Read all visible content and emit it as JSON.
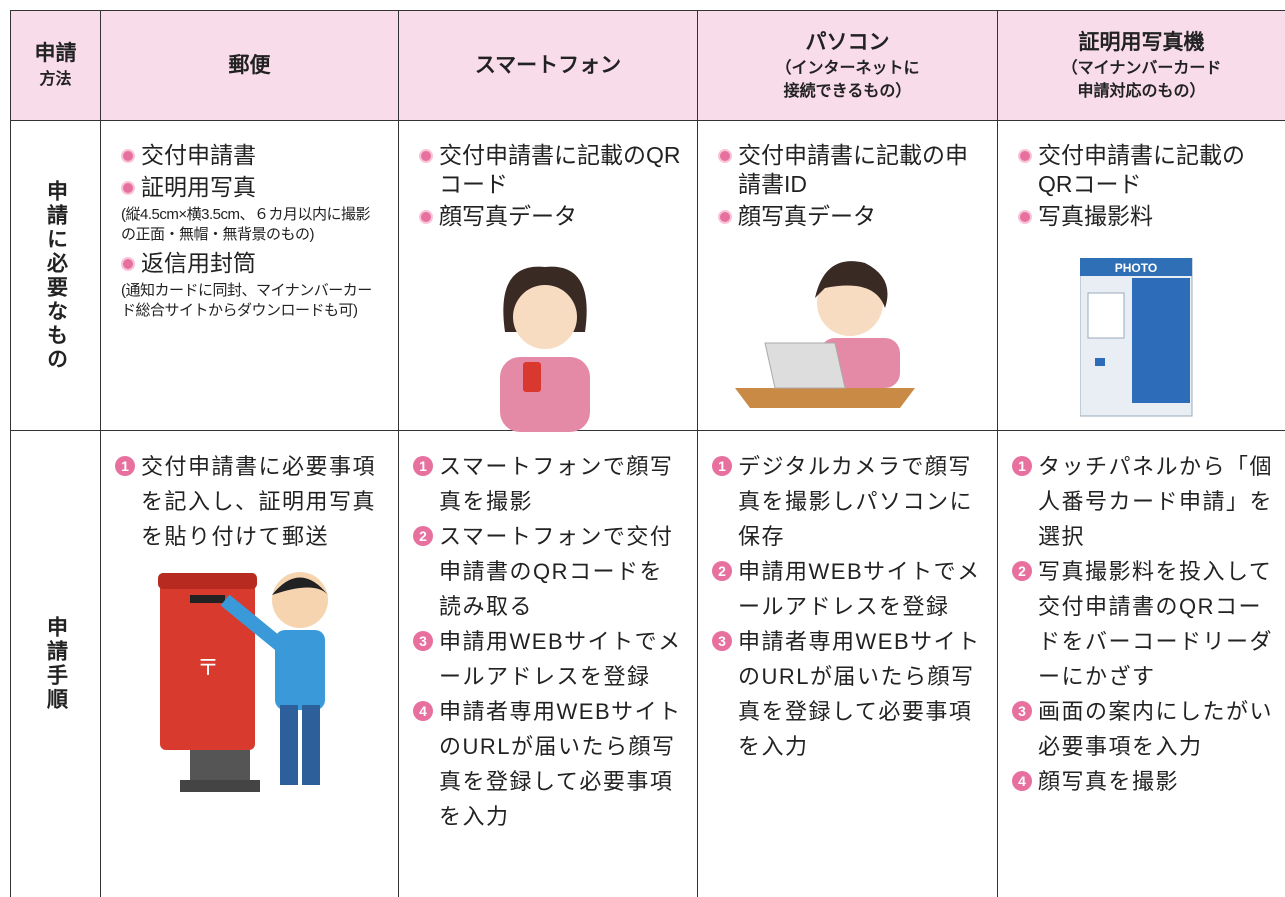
{
  "header": {
    "cells": [
      {
        "lines": [
          "申請",
          "方法"
        ]
      },
      {
        "lines": [
          "郵便"
        ]
      },
      {
        "lines": [
          "スマートフォン"
        ]
      },
      {
        "lines": [
          "パソコン",
          "（インターネットに",
          "接続できるもの）"
        ]
      },
      {
        "lines": [
          "証明用写真機",
          "（マイナンバーカード",
          "申請対応のもの）"
        ]
      }
    ]
  },
  "rows": [
    {
      "label": "申請に必要なもの",
      "cells": [
        {
          "items": [
            {
              "text": "交付申請書"
            },
            {
              "text": "証明用写真",
              "note": "(縦4.5cm×横3.5cm、６カ月以内に撮影の正面・無帽・無背景のもの)"
            },
            {
              "text": "返信用封筒",
              "note": "(通知カードに同封、マイナンバーカード総合サイトからダウンロードも可)"
            }
          ]
        },
        {
          "items": [
            {
              "text": "交付申請書に記載のQRコード"
            },
            {
              "text": "顔写真データ"
            }
          ]
        },
        {
          "items": [
            {
              "text": "交付申請書に記載の申請書ID"
            },
            {
              "text": "顔写真データ"
            }
          ]
        },
        {
          "items": [
            {
              "text": "交付申請書に記載のQRコード"
            },
            {
              "text": "写真撮影料"
            }
          ]
        }
      ]
    },
    {
      "label": "申請手順",
      "cells": [
        {
          "steps": [
            {
              "num": 1,
              "text": "交付申請書に必要事項を記入し、証明用写真を貼り付けて郵送"
            }
          ]
        },
        {
          "steps": [
            {
              "num": 1,
              "text": "スマートフォンで顔写真を撮影"
            },
            {
              "num": 2,
              "text": "スマートフォンで交付申請書のQRコードを読み取る"
            },
            {
              "num": 3,
              "text": "申請用WEBサイトでメールアドレスを登録"
            },
            {
              "num": 4,
              "text": "申請者専用WEBサイトのURLが届いたら顔写真を登録して必要事項を入力"
            }
          ]
        },
        {
          "steps": [
            {
              "num": 1,
              "text": "デジタルカメラで顔写真を撮影しパソコンに保存"
            },
            {
              "num": 2,
              "text": "申請用WEBサイトでメールアドレスを登録"
            },
            {
              "num": 3,
              "text": "申請者専用WEBサイトのURLが届いたら顔写真を登録して必要事項を入力"
            }
          ]
        },
        {
          "steps": [
            {
              "num": 1,
              "text": "タッチパネルから「個人番号カード申請」を選択"
            },
            {
              "num": 2,
              "text": "写真撮影料を投入して交付申請書のQRコードをバーコードリーダーにかざす"
            },
            {
              "num": 3,
              "text": "画面の案内にしたがい必要事項を入力"
            },
            {
              "num": 4,
              "text": "顔写真を撮影"
            }
          ]
        }
      ]
    }
  ]
}
